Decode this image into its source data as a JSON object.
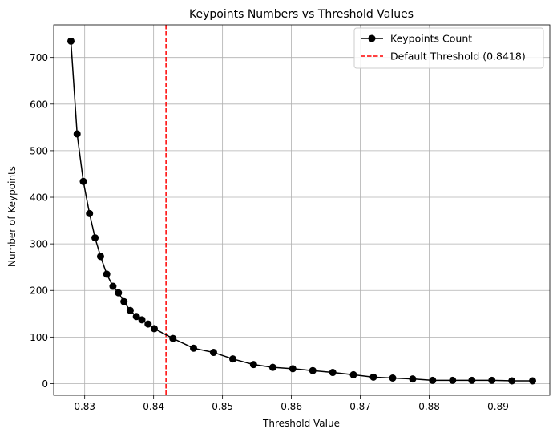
{
  "chart_data": {
    "type": "line",
    "title": "Keypoints Numbers vs Threshold Values",
    "xlabel": "Threshold Value",
    "ylabel": "Number of Keypoints",
    "xlim": [
      0.8255,
      0.8975
    ],
    "ylim": [
      -25,
      770
    ],
    "xticks": [
      0.83,
      0.84,
      0.85,
      0.86,
      0.87,
      0.88,
      0.89
    ],
    "xtick_labels": [
      "0.83",
      "0.84",
      "0.85",
      "0.86",
      "0.87",
      "0.88",
      "0.89"
    ],
    "yticks": [
      0,
      100,
      200,
      300,
      400,
      500,
      600,
      700
    ],
    "ytick_labels": [
      "0",
      "100",
      "200",
      "300",
      "400",
      "500",
      "600",
      "700"
    ],
    "grid": true,
    "legend_position": "top-right",
    "series": [
      {
        "name": "Keypoints Count",
        "color": "#000000",
        "marker": "circle",
        "x": [
          0.828,
          0.8289,
          0.8298,
          0.8307,
          0.8315,
          0.8323,
          0.8332,
          0.8341,
          0.8349,
          0.8357,
          0.8366,
          0.8375,
          0.8383,
          0.8392,
          0.8401,
          0.8428,
          0.8458,
          0.8487,
          0.8515,
          0.8545,
          0.8573,
          0.8602,
          0.8631,
          0.866,
          0.869,
          0.8719,
          0.8747,
          0.8776,
          0.8805,
          0.8834,
          0.8862,
          0.8891,
          0.892,
          0.895
        ],
        "y": [
          735,
          536,
          434,
          365,
          313,
          273,
          235,
          209,
          195,
          176,
          157,
          144,
          137,
          128,
          118,
          97,
          76,
          67,
          53,
          41,
          35,
          32,
          28,
          24,
          19,
          14,
          12,
          10,
          7,
          7,
          7,
          7,
          6,
          6
        ]
      }
    ],
    "vlines": [
      {
        "name": "Default Threshold (0.8418)",
        "x": 0.8418,
        "color": "#ff0000",
        "style": "dashed"
      }
    ]
  }
}
